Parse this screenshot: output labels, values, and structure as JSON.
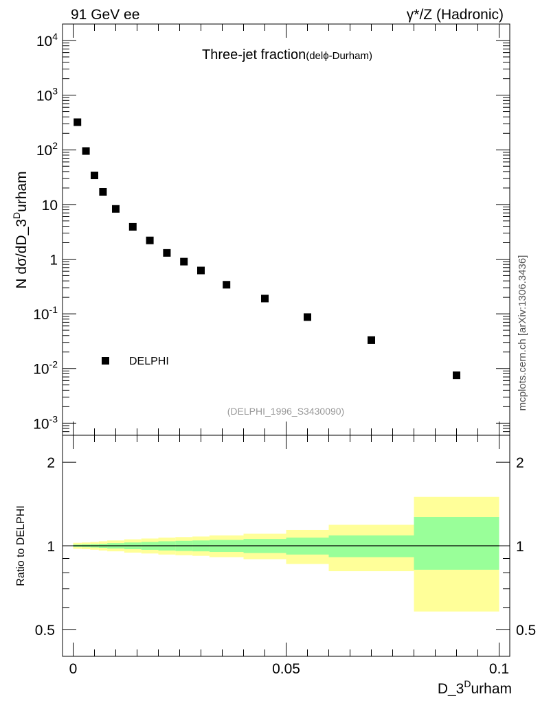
{
  "header": {
    "left": "91 GeV ee",
    "right": "γ*/Z (Hadronic)"
  },
  "side_label": "mcplots.cern.ch [arXiv:1306.3436]",
  "chart_data": {
    "type": "scatter",
    "title_main": "Three-jet fraction",
    "title_sub": "(delϕ-Durham)",
    "analysis_id": "(DELPHI_1996_S3430090)",
    "ylabel": "N dσ/dD_3^Durham",
    "xlabel": "D_3^Durham",
    "yscale": "log",
    "ylim": [
      0.0006,
      20000
    ],
    "xlim": [
      -0.0025,
      0.1025
    ],
    "y_ticks": [
      {
        "v": 10000,
        "label": "10^4"
      },
      {
        "v": 1000,
        "label": "10^3"
      },
      {
        "v": 100,
        "label": "10^2"
      },
      {
        "v": 10,
        "label": "10"
      },
      {
        "v": 1,
        "label": "1"
      },
      {
        "v": 0.1,
        "label": "10^-1"
      },
      {
        "v": 0.01,
        "label": "10^-2"
      },
      {
        "v": 0.001,
        "label": "10^-3"
      }
    ],
    "series": [
      {
        "name": "DELPHI",
        "marker": "square",
        "color": "#000000",
        "x": [
          0.001,
          0.003,
          0.005,
          0.007,
          0.01,
          0.014,
          0.018,
          0.022,
          0.026,
          0.03,
          0.036,
          0.045,
          0.055,
          0.07,
          0.09
        ],
        "y": [
          320,
          95,
          34,
          17,
          8.3,
          3.9,
          2.2,
          1.3,
          0.9,
          0.62,
          0.34,
          0.19,
          0.087,
          0.033,
          0.0075
        ]
      }
    ],
    "ratio": {
      "ylabel": "Ratio to DELPHI",
      "yscale": "log",
      "ylim": [
        0.4,
        2.5
      ],
      "y_ticks": [
        {
          "v": 2,
          "label": "2"
        },
        {
          "v": 1,
          "label": "1"
        },
        {
          "v": 0.5,
          "label": "0.5"
        }
      ],
      "x_ticks": [
        {
          "v": 0,
          "label": "0"
        },
        {
          "v": 0.05,
          "label": "0.05"
        },
        {
          "v": 0.1,
          "label": "0.1"
        }
      ],
      "band_colors": {
        "outer": "#ffff99",
        "inner": "#99ff99",
        "line": "#000000"
      },
      "bins": [
        {
          "lo": 0.0,
          "hi": 0.002,
          "outer": [
            0.975,
            1.025
          ],
          "inner": [
            0.99,
            1.01
          ]
        },
        {
          "lo": 0.002,
          "hi": 0.004,
          "outer": [
            0.972,
            1.028
          ],
          "inner": [
            0.988,
            1.012
          ]
        },
        {
          "lo": 0.004,
          "hi": 0.006,
          "outer": [
            0.968,
            1.032
          ],
          "inner": [
            0.986,
            1.014
          ]
        },
        {
          "lo": 0.006,
          "hi": 0.008,
          "outer": [
            0.962,
            1.038
          ],
          "inner": [
            0.983,
            1.017
          ]
        },
        {
          "lo": 0.008,
          "hi": 0.012,
          "outer": [
            0.955,
            1.045
          ],
          "inner": [
            0.978,
            1.022
          ]
        },
        {
          "lo": 0.012,
          "hi": 0.016,
          "outer": [
            0.945,
            1.055
          ],
          "inner": [
            0.972,
            1.028
          ]
        },
        {
          "lo": 0.016,
          "hi": 0.02,
          "outer": [
            0.938,
            1.062
          ],
          "inner": [
            0.967,
            1.033
          ]
        },
        {
          "lo": 0.02,
          "hi": 0.024,
          "outer": [
            0.93,
            1.07
          ],
          "inner": [
            0.962,
            1.038
          ]
        },
        {
          "lo": 0.024,
          "hi": 0.028,
          "outer": [
            0.925,
            1.075
          ],
          "inner": [
            0.958,
            1.042
          ]
        },
        {
          "lo": 0.028,
          "hi": 0.032,
          "outer": [
            0.92,
            1.08
          ],
          "inner": [
            0.955,
            1.045
          ]
        },
        {
          "lo": 0.032,
          "hi": 0.04,
          "outer": [
            0.91,
            1.09
          ],
          "inner": [
            0.95,
            1.05
          ]
        },
        {
          "lo": 0.04,
          "hi": 0.05,
          "outer": [
            0.895,
            1.105
          ],
          "inner": [
            0.942,
            1.058
          ]
        },
        {
          "lo": 0.05,
          "hi": 0.06,
          "outer": [
            0.86,
            1.14
          ],
          "inner": [
            0.93,
            1.07
          ]
        },
        {
          "lo": 0.06,
          "hi": 0.08,
          "outer": [
            0.81,
            1.19
          ],
          "inner": [
            0.91,
            1.09
          ]
        },
        {
          "lo": 0.08,
          "hi": 0.1,
          "outer": [
            0.58,
            1.5
          ],
          "inner": [
            0.82,
            1.27
          ]
        }
      ]
    }
  }
}
